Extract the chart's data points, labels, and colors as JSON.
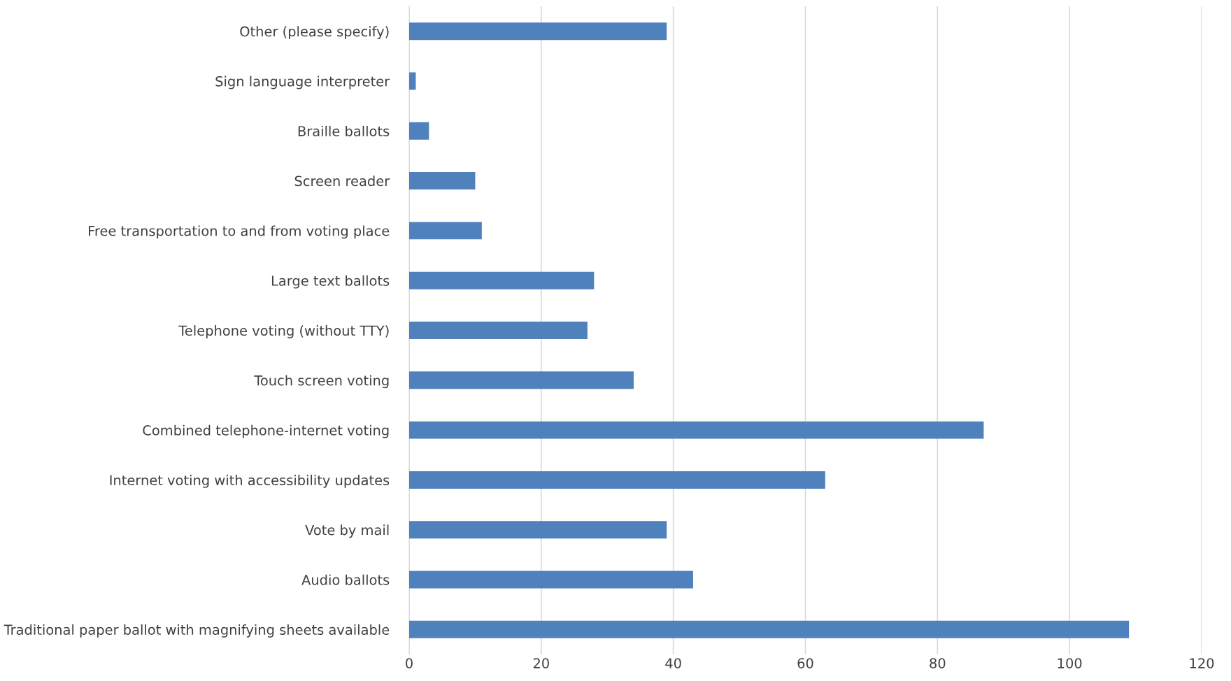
{
  "chart_data": {
    "type": "bar",
    "orientation": "horizontal",
    "categories": [
      "Other (please specify)",
      "Sign language interpreter",
      "Braille ballots",
      "Screen reader",
      "Free transportation to and from voting place",
      "Large text ballots",
      "Telephone voting (without TTY)",
      "Touch screen voting",
      "Combined telephone-internet voting",
      "Internet voting with accessibility updates",
      "Vote by mail",
      "Audio ballots",
      "Traditional paper ballot with magnifying sheets available"
    ],
    "values": [
      39,
      1,
      3,
      10,
      11,
      28,
      27,
      34,
      87,
      63,
      39,
      43,
      109
    ],
    "color": "#4f81bd",
    "xlim": [
      0,
      120
    ],
    "xticks": [
      0,
      20,
      40,
      60,
      80,
      100,
      120
    ],
    "grid": "x"
  }
}
